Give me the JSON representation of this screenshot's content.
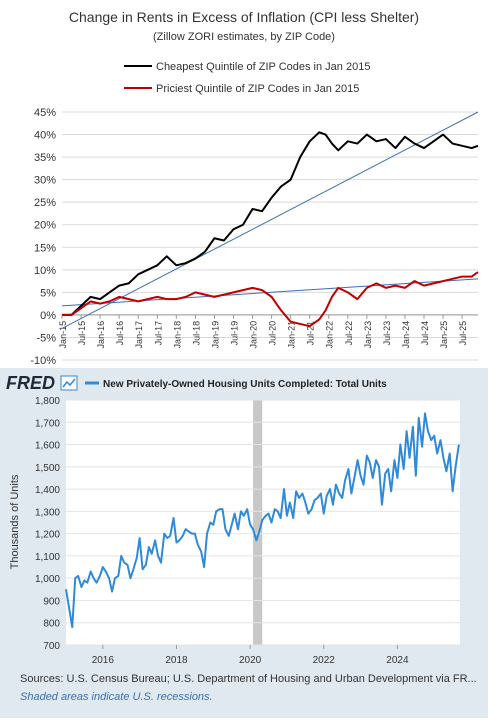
{
  "chart_data": [
    {
      "type": "line",
      "title": "Change in Rents in Excess of Inflation (CPI less Shelter)",
      "subtitle": "(Zillow ZORI estimates, by ZIP Code)",
      "x_tick_labels": [
        "Jan-15",
        "Jul-15",
        "Jan-16",
        "Jul-16",
        "Jan-17",
        "Jul-17",
        "Jan-18",
        "Jul-18",
        "Jan-19",
        "Jul-19",
        "Jan-20",
        "Jul-20",
        "Jan-21",
        "Jul-21",
        "Jan-22",
        "Jul-22",
        "Jan-23",
        "Jul-23",
        "Jan-24",
        "Jul-24",
        "Jan-25",
        "Jul-25"
      ],
      "y_tick_labels": [
        "-10%",
        "-5%",
        "0%",
        "5%",
        "10%",
        "15%",
        "20%",
        "25%",
        "30%",
        "35%",
        "40%",
        "45%"
      ],
      "ylim": [
        -10,
        45
      ],
      "xlim": [
        "2015-01",
        "2025-12"
      ],
      "grid": true,
      "legend_position": "top",
      "series": [
        {
          "name": "Cheapest Quintile of ZIP Codes in Jan 2015",
          "color": "#000000",
          "x": [
            "2015-01",
            "2015-04",
            "2015-07",
            "2015-10",
            "2016-01",
            "2016-04",
            "2016-07",
            "2016-10",
            "2017-01",
            "2017-04",
            "2017-07",
            "2017-10",
            "2018-01",
            "2018-04",
            "2018-07",
            "2018-10",
            "2019-01",
            "2019-04",
            "2019-07",
            "2019-10",
            "2020-01",
            "2020-04",
            "2020-07",
            "2020-10",
            "2021-01",
            "2021-04",
            "2021-07",
            "2021-10",
            "2021-12",
            "2022-02",
            "2022-04",
            "2022-07",
            "2022-10",
            "2023-01",
            "2023-04",
            "2023-07",
            "2023-10",
            "2024-01",
            "2024-04",
            "2024-07",
            "2024-10",
            "2025-01",
            "2025-04",
            "2025-07",
            "2025-10",
            "2025-12"
          ],
          "values": [
            0,
            0,
            2,
            4,
            3.5,
            5,
            6.5,
            7,
            9,
            10,
            11,
            13,
            11,
            11.5,
            12.5,
            14,
            17,
            16.5,
            19,
            20,
            23.5,
            23,
            26,
            28.5,
            30,
            35,
            38.5,
            40.5,
            40,
            38,
            36.5,
            38.5,
            38,
            40,
            38.5,
            39,
            37,
            39.5,
            38,
            37,
            38.5,
            40,
            38,
            37.5,
            37,
            37.5
          ]
        },
        {
          "name": "Priciest Quintile of ZIP Codes in Jan 2015",
          "color": "#c00000",
          "x": [
            "2015-01",
            "2015-04",
            "2015-07",
            "2015-10",
            "2016-01",
            "2016-04",
            "2016-07",
            "2016-10",
            "2017-01",
            "2017-04",
            "2017-07",
            "2017-10",
            "2018-01",
            "2018-04",
            "2018-07",
            "2018-10",
            "2019-01",
            "2019-04",
            "2019-07",
            "2019-10",
            "2020-01",
            "2020-04",
            "2020-07",
            "2020-10",
            "2021-01",
            "2021-04",
            "2021-07",
            "2021-10",
            "2021-12",
            "2022-02",
            "2022-04",
            "2022-07",
            "2022-10",
            "2023-01",
            "2023-04",
            "2023-07",
            "2023-10",
            "2024-01",
            "2024-04",
            "2024-07",
            "2024-10",
            "2025-01",
            "2025-04",
            "2025-07",
            "2025-10",
            "2025-12"
          ],
          "values": [
            0,
            0,
            1.5,
            3,
            2.5,
            3,
            4,
            3.5,
            3,
            3.5,
            4,
            3.5,
            3.5,
            4,
            5,
            4.5,
            4,
            4.5,
            5,
            5.5,
            6,
            5.5,
            4,
            1,
            -1.5,
            -2,
            -2.5,
            -1,
            1,
            4,
            6,
            5,
            3.5,
            6,
            7,
            6,
            6.5,
            6,
            7.5,
            6.5,
            7,
            7.5,
            8,
            8.5,
            8.5,
            9.5
          ]
        }
      ],
      "trendlines": [
        {
          "color": "#3d6fb5",
          "x": [
            "2015-01",
            "2025-12"
          ],
          "values": [
            -3,
            45
          ]
        },
        {
          "color": "#3d6fb5",
          "x": [
            "2015-01",
            "2025-12"
          ],
          "values": [
            2,
            8
          ]
        }
      ]
    },
    {
      "type": "line",
      "brand": "FRED",
      "series_name": "New Privately-Owned Housing Units Completed: Total Units",
      "ylabel": "Thousands of Units",
      "x_tick_labels": [
        "2016",
        "2018",
        "2020",
        "2022",
        "2024"
      ],
      "y_tick_labels": [
        "700",
        "800",
        "900",
        "1,000",
        "1,100",
        "1,200",
        "1,300",
        "1,400",
        "1,500",
        "1,600",
        "1,700",
        "1,800"
      ],
      "ylim": [
        700,
        1800
      ],
      "xlim": [
        2015.0,
        2025.7
      ],
      "recession_shading": [
        2020.08,
        2020.33
      ],
      "series": [
        {
          "name": "New Privately-Owned Housing Units Completed: Total Units",
          "color": "#2f8ad8",
          "x": [
            2015.0,
            2015.08,
            2015.17,
            2015.25,
            2015.33,
            2015.42,
            2015.5,
            2015.58,
            2015.67,
            2015.75,
            2015.83,
            2015.92,
            2016.0,
            2016.08,
            2016.17,
            2016.25,
            2016.33,
            2016.42,
            2016.5,
            2016.58,
            2016.67,
            2016.75,
            2016.83,
            2016.92,
            2017.0,
            2017.08,
            2017.17,
            2017.25,
            2017.33,
            2017.42,
            2017.5,
            2017.58,
            2017.67,
            2017.75,
            2017.83,
            2017.92,
            2018.0,
            2018.08,
            2018.17,
            2018.25,
            2018.33,
            2018.42,
            2018.5,
            2018.58,
            2018.67,
            2018.75,
            2018.83,
            2018.92,
            2019.0,
            2019.08,
            2019.17,
            2019.25,
            2019.33,
            2019.42,
            2019.5,
            2019.58,
            2019.67,
            2019.75,
            2019.83,
            2019.92,
            2020.0,
            2020.08,
            2020.17,
            2020.25,
            2020.33,
            2020.42,
            2020.5,
            2020.58,
            2020.67,
            2020.75,
            2020.83,
            2020.92,
            2021.0,
            2021.08,
            2021.17,
            2021.25,
            2021.33,
            2021.42,
            2021.5,
            2021.58,
            2021.67,
            2021.75,
            2021.83,
            2021.92,
            2022.0,
            2022.08,
            2022.17,
            2022.25,
            2022.33,
            2022.42,
            2022.5,
            2022.58,
            2022.67,
            2022.75,
            2022.83,
            2022.92,
            2023.0,
            2023.08,
            2023.17,
            2023.25,
            2023.33,
            2023.42,
            2023.5,
            2023.58,
            2023.67,
            2023.75,
            2023.83,
            2023.92,
            2024.0,
            2024.08,
            2024.17,
            2024.25,
            2024.33,
            2024.42,
            2024.5,
            2024.58,
            2024.67,
            2024.75,
            2024.83,
            2024.92,
            2025.0,
            2025.08,
            2025.17,
            2025.25,
            2025.33,
            2025.42,
            2025.5,
            2025.58,
            2025.67
          ],
          "values": [
            950,
            870,
            780,
            1000,
            1010,
            960,
            990,
            980,
            1030,
            1000,
            980,
            1010,
            1050,
            1030,
            1000,
            940,
            1000,
            1010,
            1100,
            1070,
            1060,
            1000,
            1040,
            1090,
            1180,
            1040,
            1060,
            1140,
            1110,
            1170,
            1100,
            1070,
            1200,
            1180,
            1190,
            1270,
            1160,
            1170,
            1190,
            1220,
            1210,
            1200,
            1200,
            1150,
            1120,
            1050,
            1200,
            1250,
            1240,
            1300,
            1310,
            1310,
            1220,
            1190,
            1240,
            1290,
            1220,
            1300,
            1280,
            1310,
            1240,
            1220,
            1170,
            1210,
            1260,
            1280,
            1290,
            1250,
            1310,
            1300,
            1270,
            1400,
            1280,
            1340,
            1270,
            1390,
            1360,
            1380,
            1340,
            1290,
            1310,
            1350,
            1360,
            1380,
            1290,
            1370,
            1400,
            1330,
            1420,
            1380,
            1360,
            1440,
            1490,
            1380,
            1450,
            1530,
            1460,
            1420,
            1550,
            1520,
            1450,
            1530,
            1500,
            1330,
            1470,
            1490,
            1390,
            1530,
            1450,
            1600,
            1490,
            1660,
            1540,
            1680,
            1460,
            1720,
            1590,
            1740,
            1660,
            1620,
            1640,
            1560,
            1620,
            1540,
            1480,
            1560,
            1390,
            1500,
            1600
          ]
        }
      ],
      "source": "Sources: U.S. Census Bureau; U.S. Department of Housing and Urban Development via FR...",
      "note": "Shaded areas indicate U.S. recessions."
    }
  ]
}
